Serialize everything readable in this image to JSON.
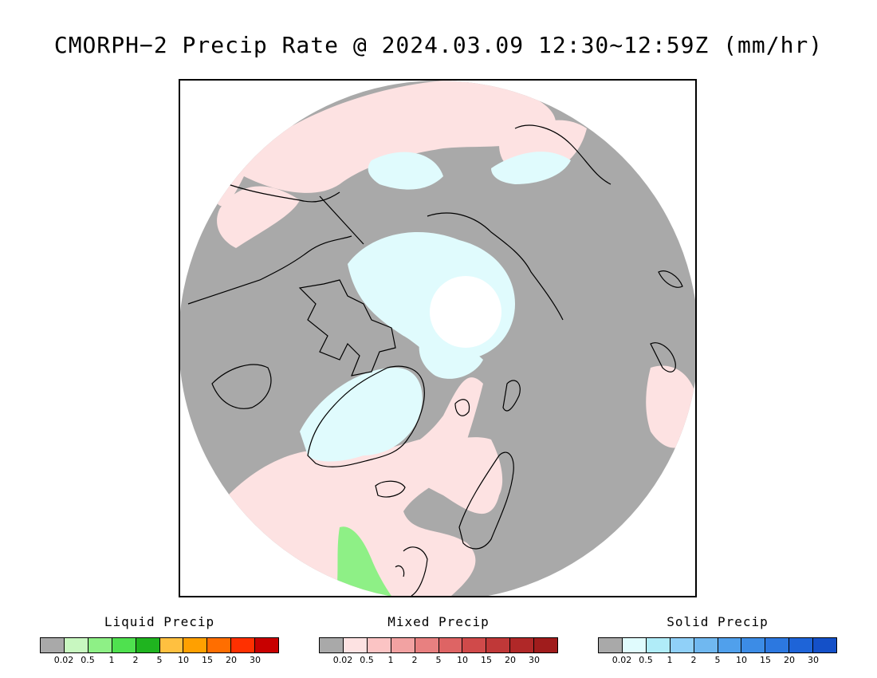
{
  "title": "CMORPH−2 Precip Rate @ 2024.03.09 12:30~12:59Z (mm/hr)",
  "map": {
    "projection": "north-polar-stereographic",
    "background_color": "#a9a9a9",
    "ocean_mixed_color": "#fde2e2",
    "snow_color": "#e0fbfd",
    "pole_color": "#ffffff",
    "coastline_color": "#000000"
  },
  "legends": [
    {
      "name": "liquid",
      "title": "Liquid Precip",
      "colors": [
        "#a9a9a9",
        "#c8f7c0",
        "#8ef086",
        "#4fe14f",
        "#1fb41f",
        "#ffc040",
        "#ffa000",
        "#ff6e00",
        "#ff3000",
        "#c80000"
      ],
      "ticks": [
        "0.02",
        "0.5",
        "1",
        "2",
        "5",
        "10",
        "15",
        "20",
        "30"
      ]
    },
    {
      "name": "mixed",
      "title": "Mixed Precip",
      "colors": [
        "#a9a9a9",
        "#fde2e2",
        "#fbc4c4",
        "#f2a2a2",
        "#e88080",
        "#de6464",
        "#d04a4a",
        "#c03838",
        "#b02828",
        "#a01c1c"
      ],
      "ticks": [
        "0.02",
        "0.5",
        "1",
        "2",
        "5",
        "10",
        "15",
        "20",
        "30"
      ]
    },
    {
      "name": "solid",
      "title": "Solid Precip",
      "colors": [
        "#a9a9a9",
        "#e0fbfd",
        "#b0ecf8",
        "#90d0f8",
        "#70b8f0",
        "#50a0ec",
        "#3c8ce6",
        "#2c78e0",
        "#1e64d8",
        "#1450c8"
      ],
      "ticks": [
        "0.02",
        "0.5",
        "1",
        "2",
        "5",
        "10",
        "15",
        "20",
        "30"
      ]
    }
  ]
}
